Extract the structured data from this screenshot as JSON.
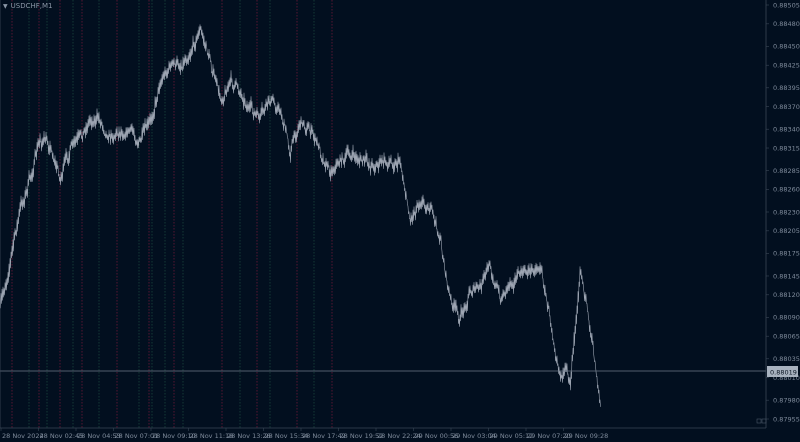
{
  "window": {
    "title": "USDCHF,M1",
    "menu_icon": "triangle-down-icon"
  },
  "colors": {
    "background": "#020f1f",
    "price_line": "#b8c0cc",
    "grid_red": "#7a1a3a",
    "grid_green": "#1d4a40",
    "current_price_line": "#6d7a88",
    "axis": "#3a4656"
  },
  "chart_data": {
    "type": "line",
    "symbol": "USDCHF",
    "timeframe": "M1",
    "y_ticks": [
      "0.88505",
      "0.88480",
      "0.88450",
      "0.88425",
      "0.88395",
      "0.88370",
      "0.88340",
      "0.88315",
      "0.88285",
      "0.88260",
      "0.88230",
      "0.88205",
      "0.88175",
      "0.88145",
      "0.88120",
      "0.88090",
      "0.88065",
      "0.88035",
      "0.88010",
      "0.87980",
      "0.87955"
    ],
    "ylim": [
      0.87955,
      0.88505
    ],
    "x_ticks": [
      "28 Nov 2024",
      "28 Nov 02:45",
      "28 Nov 04:53",
      "28 Nov 07:01",
      "28 Nov 09:10",
      "28 Nov 11:18",
      "28 Nov 13:26",
      "28 Nov 15:34",
      "28 Nov 17:42",
      "28 Nov 19:52",
      "28 Nov 22:24",
      "29 Nov 00:56",
      "29 Nov 03:04",
      "29 Nov 05:12",
      "29 Nov 07:20",
      "29 Nov 09:28"
    ],
    "current_price": "0.88019",
    "prices": [
      0.881,
      0.88166,
      0.88233,
      0.88273,
      0.88326,
      0.88319,
      0.88275,
      0.88312,
      0.88326,
      0.88355,
      0.88352,
      0.88332,
      0.88339,
      0.88339,
      0.88323,
      0.88346,
      0.88405,
      0.88425,
      0.88425,
      0.88445,
      0.88472,
      0.88432,
      0.88379,
      0.88403,
      0.88392,
      0.88366,
      0.88352,
      0.88379,
      0.88366,
      0.88312,
      0.88352,
      0.88339,
      0.88312,
      0.88286,
      0.88299,
      0.88306,
      0.88299,
      0.88293,
      0.88295,
      0.88297,
      0.88299,
      0.8822,
      0.8825,
      0.88235,
      0.88193,
      0.88113,
      0.88087,
      0.88127,
      0.88127,
      0.8816,
      0.88113,
      0.8814,
      0.88146,
      0.88153,
      0.8816,
      0.88087,
      0.8802,
      0.88007,
      0.8816,
      0.88073,
      0.8798
    ],
    "grid": false
  }
}
